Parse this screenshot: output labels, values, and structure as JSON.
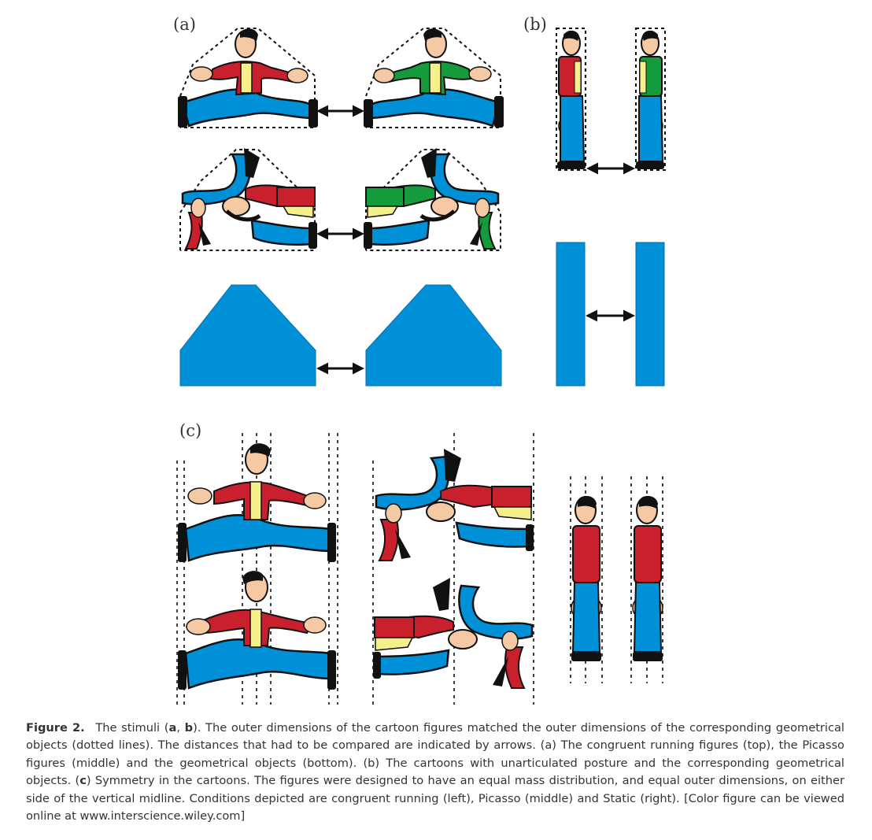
{
  "panels": {
    "a": "(a)",
    "b": "(b)",
    "c": "(c)"
  },
  "caption": {
    "label": "Figure 2.",
    "seg1": "The stimuli (",
    "b1": "a",
    "seg2": ", ",
    "b2": "b",
    "seg3": "). The outer dimensions of the cartoon figures matched the outer dimensions of the corresponding geometrical objects (dotted lines). The distances that had to be compared are indicated by arrows. (a) The congruent running figures (top), the Picasso figures (middle) and the geometrical objects (bottom). (b) The cartoons with unarticulated posture and the corresponding geometrical objects. (",
    "b3": "c",
    "seg4": ") Symmetry in the cartoons. The figures were designed to have an equal mass distribution, and equal outer dimensions, on either side of the vertical midline. Conditions depicted are congruent running (left), Picasso (middle) and Static (right). [Color figure can be viewed online at www.interscience.wiley.com]"
  },
  "colors": {
    "blue": "#0090d8",
    "red": "#c8202c",
    "green": "#159a3c",
    "yellow": "#f6f08a",
    "skin": "#f4c9a4",
    "ink": "#111111"
  }
}
